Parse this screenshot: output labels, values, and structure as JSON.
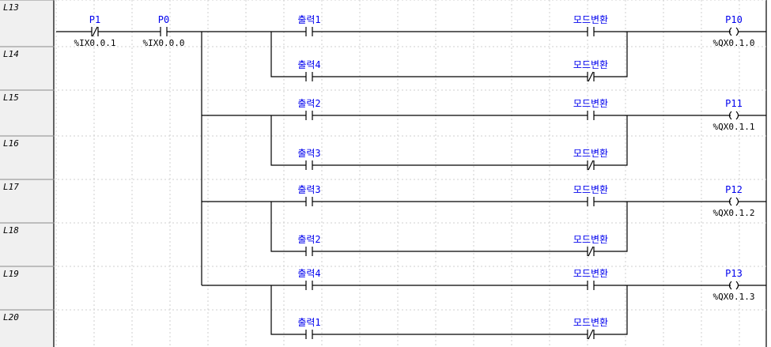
{
  "line_labels": [
    "L13",
    "L14",
    "L15",
    "L16",
    "L17",
    "L18",
    "L19",
    "L20"
  ],
  "rung0": {
    "p1": {
      "name": "P1",
      "address": "%IX0.0.1",
      "type": "NC"
    },
    "p0": {
      "name": "P0",
      "address": "%IX0.0.0",
      "type": "NO"
    }
  },
  "branches": [
    {
      "coil": {
        "name": "P10",
        "address": "%QX0.1.0"
      },
      "upper": {
        "contact": "출력1",
        "mode": "모드변환",
        "mode_type": "NO"
      },
      "lower": {
        "contact": "출력4",
        "mode": "모드변환",
        "mode_type": "NC"
      }
    },
    {
      "coil": {
        "name": "P11",
        "address": "%QX0.1.1"
      },
      "upper": {
        "contact": "출력2",
        "mode": "모드변환",
        "mode_type": "NO"
      },
      "lower": {
        "contact": "출력3",
        "mode": "모드변환",
        "mode_type": "NC"
      }
    },
    {
      "coil": {
        "name": "P12",
        "address": "%QX0.1.2"
      },
      "upper": {
        "contact": "출력3",
        "mode": "모드변환",
        "mode_type": "NO"
      },
      "lower": {
        "contact": "출력2",
        "mode": "모드변환",
        "mode_type": "NC"
      }
    },
    {
      "coil": {
        "name": "P13",
        "address": "%QX0.1.3"
      },
      "upper": {
        "contact": "출력4",
        "mode": "모드변환",
        "mode_type": "NO"
      },
      "lower": {
        "contact": "출력1",
        "mode": "모드변환",
        "mode_type": "NC"
      }
    }
  ],
  "colors": {
    "label": "#0000ee",
    "wire": "#000000",
    "grid": "#cfcfcf",
    "gutter": "#f0f0f0"
  }
}
